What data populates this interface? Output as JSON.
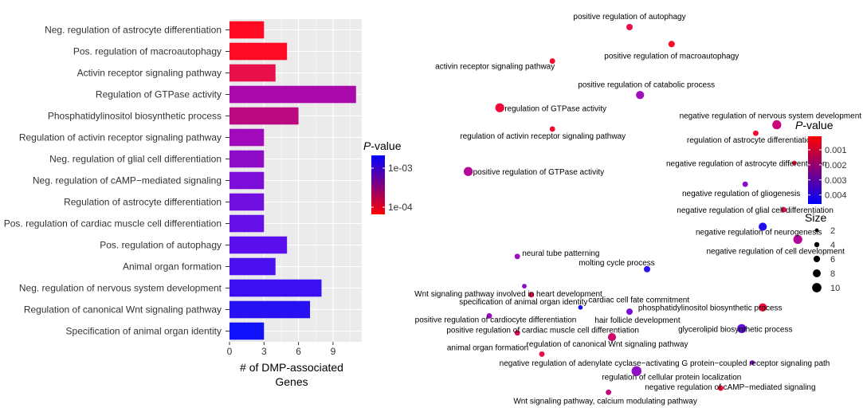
{
  "chart_data": [
    {
      "type": "bar",
      "orientation": "horizontal",
      "xlabel": "# of DMP-associated Genes",
      "xlabel_lines": [
        "# of DMP-associated",
        "Genes"
      ],
      "ylabel": "",
      "xlim": [
        0,
        11.5
      ],
      "xticks": [
        0,
        3,
        6,
        9
      ],
      "grid": true,
      "categories": [
        "Neg. regulation of astrocyte differentiation",
        "Pos. regulation of macroautophagy",
        "Activin receptor signaling pathway",
        "Regulation of GTPase activity",
        "Phosphatidylinositol biosynthetic process",
        "Regulation of activin receptor signaling pathway",
        "Neg. regulation of glial cell differentiation",
        "Neg. regulation of cAMP−mediated signaling",
        "Regulation of astrocyte differentiation",
        "Pos. regulation of cardiac muscle cell differentiation",
        "Pos. regulation of autophagy",
        "Animal organ formation",
        "Neg. regulation of nervous system development",
        "Regulation of canonical Wnt signaling pathway",
        "Specification of animal organ identity"
      ],
      "values": [
        3,
        5,
        4,
        11,
        6,
        3,
        3,
        3,
        3,
        3,
        5,
        4,
        8,
        7,
        3
      ],
      "colors": [
        "#FF0A22",
        "#FF0A24",
        "#E8104A",
        "#AA08AA",
        "#BB0A80",
        "#A00ABA",
        "#8E0CC8",
        "#7C0CD8",
        "#700FE0",
        "#660FE6",
        "#5A0FEC",
        "#4A10EE",
        "#3A10F2",
        "#2810F4",
        "#1010FA"
      ],
      "legend": {
        "title": "P-value",
        "title_plain": "",
        "title_italic": "P",
        "title_rest": "-value",
        "labels": [
          "1e-03",
          "1e-04"
        ],
        "color_low": "#FF0000",
        "color_high": "#0000FF",
        "placement": "right"
      }
    },
    {
      "type": "scatter",
      "description_free": true,
      "points": [
        {
          "label": "positive regulation of autophagy",
          "x": 0.5,
          "y": 9.3,
          "size": 4,
          "pvalue": 0.0006,
          "color": "#E8104A"
        },
        {
          "label": "positive regulation of macroautophagy",
          "x": 0.62,
          "y": 8.9,
          "size": 4,
          "pvalue": 0.0001,
          "color": "#FF0A22"
        },
        {
          "label": "activin receptor signaling pathway",
          "x": 0.28,
          "y": 8.5,
          "size": 3,
          "pvalue": 0.0002,
          "color": "#F50A30"
        },
        {
          "label": "positive regulation of catabolic process",
          "x": 0.53,
          "y": 7.7,
          "size": 6,
          "pvalue": 0.0018,
          "color": "#A010B8"
        },
        {
          "label": "regulation of GTPase activity",
          "x": 0.13,
          "y": 7.4,
          "size": 7,
          "pvalue": 0.0003,
          "color": "#F00838"
        },
        {
          "label": "negative regulation of nervous system development",
          "x": 0.92,
          "y": 7.0,
          "size": 7,
          "pvalue": 0.001,
          "color": "#C8087A"
        },
        {
          "label": "regulation of activin receptor signaling pathway",
          "x": 0.28,
          "y": 6.9,
          "size": 3,
          "pvalue": 0.0002,
          "color": "#F50A30"
        },
        {
          "label": "regulation of astrocyte differentiation",
          "x": 0.86,
          "y": 6.8,
          "size": 3,
          "pvalue": 0.0002,
          "color": "#F50A30"
        },
        {
          "label": "negative regulation of astrocyte differentiation",
          "x": 0.97,
          "y": 6.1,
          "size": 2,
          "pvalue": 0.0002,
          "color": "#F50A30"
        },
        {
          "label": "positive regulation of GTPase activity",
          "x": 0.04,
          "y": 5.9,
          "size": 7,
          "pvalue": 0.0013,
          "color": "#B50898"
        },
        {
          "label": "negative regulation of gliogenesis",
          "x": 0.83,
          "y": 5.6,
          "size": 3,
          "pvalue": 0.0025,
          "color": "#8A0CC8"
        },
        {
          "label": "negative regulation of glial cell differentiation",
          "x": 0.94,
          "y": 5.0,
          "size": 3,
          "pvalue": 0.0006,
          "color": "#E0105A"
        },
        {
          "label": "negative regulation of neurogenesis",
          "x": 0.88,
          "y": 4.6,
          "size": 6,
          "pvalue": 0.0045,
          "color": "#2010F0"
        },
        {
          "label": "negative regulation of cell development",
          "x": 0.98,
          "y": 4.3,
          "size": 7,
          "pvalue": 0.0015,
          "color": "#B00898"
        },
        {
          "label": "neural tube patterning",
          "x": 0.18,
          "y": 3.9,
          "size": 3,
          "pvalue": 0.002,
          "color": "#9A0CC0"
        },
        {
          "label": "molting cycle process",
          "x": 0.55,
          "y": 3.6,
          "size": 4,
          "pvalue": 0.0045,
          "color": "#2810F0"
        },
        {
          "label": "Wnt signaling pathway involved in heart development",
          "x": 0.2,
          "y": 3.2,
          "size": 2,
          "pvalue": 0.0025,
          "color": "#8A0CC8"
        },
        {
          "label": "specification of animal organ identity",
          "x": 0.22,
          "y": 3.0,
          "size": 3,
          "pvalue": 0.0005,
          "color": "#E8104A"
        },
        {
          "label": "cardiac cell fate commitment",
          "x": 0.36,
          "y": 2.7,
          "size": 2,
          "pvalue": 0.0045,
          "color": "#2010F0"
        },
        {
          "label": "hair follicle development",
          "x": 0.5,
          "y": 2.6,
          "size": 4,
          "pvalue": 0.003,
          "color": "#7A0CD4"
        },
        {
          "label": "phosphatidylinositol biosynthetic process",
          "x": 0.88,
          "y": 2.7,
          "size": 6,
          "pvalue": 0.0003,
          "color": "#F00838"
        },
        {
          "label": "positive regulation of cardiocyte differentiation",
          "x": 0.1,
          "y": 2.5,
          "size": 3,
          "pvalue": 0.002,
          "color": "#9A0CC0"
        },
        {
          "label": "positive regulation of cardiac muscle cell differentiation",
          "x": 0.18,
          "y": 2.1,
          "size": 3,
          "pvalue": 0.0007,
          "color": "#D80A5A"
        },
        {
          "label": "glycerolipid biosynthetic process",
          "x": 0.82,
          "y": 2.2,
          "size": 7,
          "pvalue": 0.0035,
          "color": "#6010D8"
        },
        {
          "label": "regulation of canonical Wnt signaling pathway",
          "x": 0.45,
          "y": 2.0,
          "size": 6,
          "pvalue": 0.0009,
          "color": "#D0086A"
        },
        {
          "label": "animal organ formation",
          "x": 0.25,
          "y": 1.6,
          "size": 3,
          "pvalue": 0.0006,
          "color": "#E8104A"
        },
        {
          "label": "negative regulation of adenylate cyclase−activating G protein−coupled receptor signaling path",
          "x": 0.85,
          "y": 1.4,
          "size": 2,
          "pvalue": 0.0025,
          "color": "#8A0CC8"
        },
        {
          "label": "regulation of cellular protein localization",
          "x": 0.52,
          "y": 1.2,
          "size": 8,
          "pvalue": 0.0025,
          "color": "#9010C4"
        },
        {
          "label": "negative regulation of cAMP−mediated signaling",
          "x": 0.76,
          "y": 0.8,
          "size": 3,
          "pvalue": 0.0004,
          "color": "#F00838"
        },
        {
          "label": "Wnt signaling pathway, calcium modulating pathway",
          "x": 0.44,
          "y": 0.7,
          "size": 3,
          "pvalue": 0.0012,
          "color": "#C0087C"
        }
      ],
      "color_legend": {
        "title": "P-value",
        "title_italic": "P",
        "title_rest": "-value",
        "labels": [
          "0.001",
          "0.002",
          "0.003",
          "0.004"
        ],
        "values": [
          0.001,
          0.002,
          0.003,
          0.004
        ],
        "range": [
          0.0001,
          0.0046
        ],
        "color_low": "#FF0000",
        "color_high": "#0000FF"
      },
      "size_legend": {
        "title": "Size",
        "labels": [
          "2",
          "4",
          "6",
          "8",
          "10"
        ],
        "values": [
          2,
          4,
          6,
          8,
          10
        ]
      }
    }
  ]
}
